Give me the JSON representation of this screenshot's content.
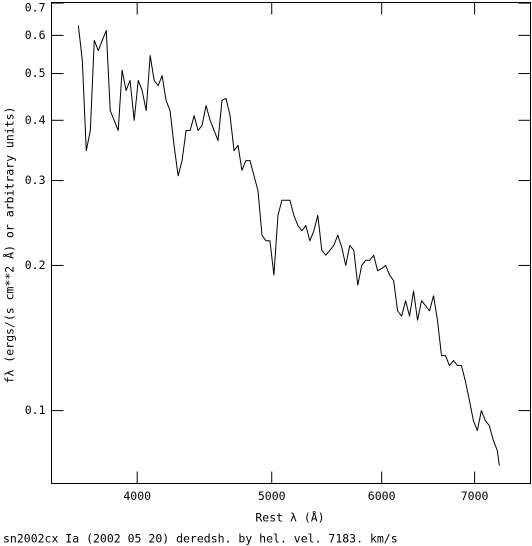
{
  "chart_data": {
    "type": "line",
    "xlabel": "Rest λ (Å)",
    "ylabel": "fλ (ergs/(s cm**2 Å) or arbitrary units)",
    "caption": "sn2002cx Ia (2002 05 20) deredsh. by hel. vel.  7183. km/s",
    "xscale": "log",
    "yscale": "log",
    "xlim": [
      3470,
      7680
    ],
    "ylim": [
      0.0706,
      0.702
    ],
    "xticks": [
      4000,
      5000,
      6000,
      7000
    ],
    "yticks": [
      0.1,
      0.2,
      0.3,
      0.4,
      0.5,
      0.6,
      0.7
    ],
    "color": "#000000",
    "x": [
      3628,
      3652,
      3676,
      3701,
      3725,
      3750,
      3775,
      3800,
      3825,
      3850,
      3876,
      3901,
      3927,
      3953,
      3980,
      4007,
      4033,
      4060,
      4087,
      4114,
      4141,
      4169,
      4196,
      4224,
      4252,
      4281,
      4309,
      4338,
      4367,
      4396,
      4425,
      4454,
      4484,
      4514,
      4544,
      4574,
      4604,
      4635,
      4666,
      4697,
      4728,
      4759,
      4791,
      4823,
      4855,
      4887,
      4920,
      4952,
      4985,
      5018,
      5052,
      5085,
      5119,
      5153,
      5187,
      5222,
      5256,
      5291,
      5326,
      5362,
      5397,
      5433,
      5469,
      5506,
      5542,
      5579,
      5616,
      5653,
      5691,
      5729,
      5767,
      5805,
      5843,
      5882,
      5921,
      5960,
      6000,
      6040,
      6080,
      6120,
      6161,
      6202,
      6243,
      6284,
      6326,
      6368,
      6410,
      6453,
      6496,
      6539,
      6582,
      6626,
      6670,
      6714,
      6759,
      6803,
      6849,
      6894,
      6940,
      6986,
      7032,
      7079,
      7126,
      7173,
      7221,
      7269,
      7293
    ],
    "values": [
      0.629,
      0.532,
      0.346,
      0.381,
      0.586,
      0.558,
      0.586,
      0.614,
      0.419,
      0.4,
      0.381,
      0.508,
      0.461,
      0.484,
      0.4,
      0.484,
      0.461,
      0.419,
      0.545,
      0.484,
      0.472,
      0.495,
      0.44,
      0.419,
      0.355,
      0.307,
      0.33,
      0.381,
      0.381,
      0.409,
      0.381,
      0.39,
      0.429,
      0.4,
      0.381,
      0.363,
      0.44,
      0.444,
      0.409,
      0.346,
      0.355,
      0.315,
      0.33,
      0.33,
      0.307,
      0.286,
      0.231,
      0.225,
      0.225,
      0.191,
      0.254,
      0.273,
      0.273,
      0.273,
      0.254,
      0.242,
      0.236,
      0.242,
      0.225,
      0.236,
      0.254,
      0.215,
      0.21,
      0.215,
      0.22,
      0.231,
      0.218,
      0.2,
      0.22,
      0.215,
      0.182,
      0.2,
      0.205,
      0.205,
      0.21,
      0.195,
      0.197,
      0.2,
      0.191,
      0.186,
      0.161,
      0.157,
      0.169,
      0.157,
      0.177,
      0.154,
      0.169,
      0.165,
      0.161,
      0.173,
      0.154,
      0.13,
      0.13,
      0.124,
      0.127,
      0.124,
      0.124,
      0.115,
      0.105,
      0.0953,
      0.0909,
      0.1,
      0.0953,
      0.0931,
      0.0867,
      0.0826,
      0.0769
    ]
  }
}
